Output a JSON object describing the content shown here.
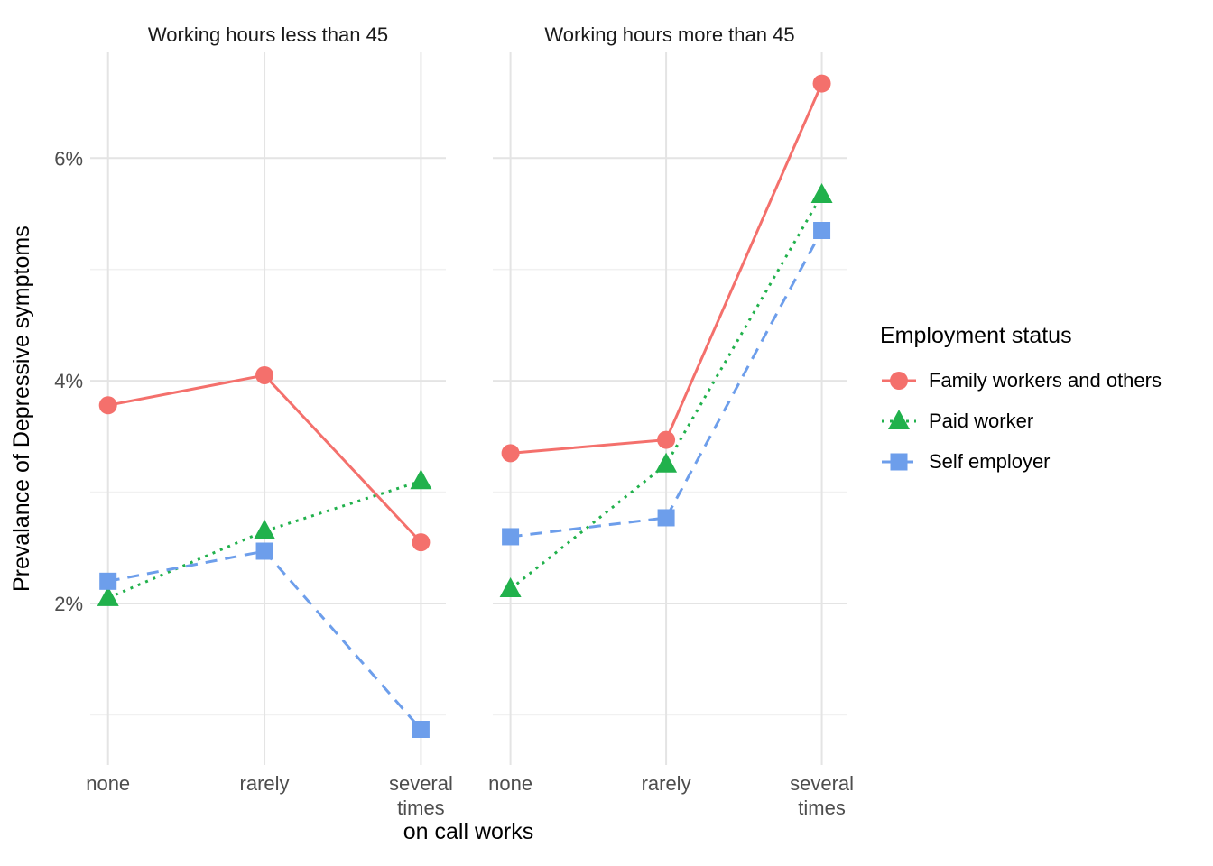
{
  "chart_data": {
    "type": "line",
    "xlabel": "on call works",
    "ylabel": "Prevalance of Depressive symptoms",
    "categories": [
      "none",
      "rarely",
      "several\ntimes"
    ],
    "yticks": [
      2,
      4,
      6
    ],
    "ytick_labels": [
      "2%",
      "4%",
      "6%"
    ],
    "yticks_minor": [
      1,
      3,
      5
    ],
    "ylim": [
      0.55,
      6.95
    ],
    "grid": true,
    "legend_title": "Employment status",
    "legend_position": "right",
    "series_styles": [
      {
        "name": "Family workers and others",
        "color": "#F4706C",
        "marker": "circle",
        "line": "solid"
      },
      {
        "name": "Paid worker",
        "color": "#21B14C",
        "marker": "triangle",
        "line": "dotted"
      },
      {
        "name": "Self employer",
        "color": "#6D9EEB",
        "marker": "square",
        "line": "dashed"
      }
    ],
    "facets": [
      {
        "title": "Working hours less than 45",
        "series": [
          {
            "name": "Family workers and others",
            "values": [
              3.78,
              4.05,
              2.55
            ]
          },
          {
            "name": "Paid worker",
            "values": [
              2.05,
              2.65,
              3.1
            ]
          },
          {
            "name": "Self employer",
            "values": [
              2.2,
              2.47,
              0.87
            ]
          }
        ]
      },
      {
        "title": "Working hours more than 45",
        "series": [
          {
            "name": "Family workers and others",
            "values": [
              3.35,
              3.47,
              6.67
            ]
          },
          {
            "name": "Paid worker",
            "values": [
              2.13,
              3.25,
              5.67
            ]
          },
          {
            "name": "Self employer",
            "values": [
              2.6,
              2.77,
              5.35
            ]
          }
        ]
      }
    ],
    "grid_major_color": "#E4E4E4",
    "grid_minor_color": "#F1F1F1",
    "tick_label_color": "#4D4D4D"
  }
}
